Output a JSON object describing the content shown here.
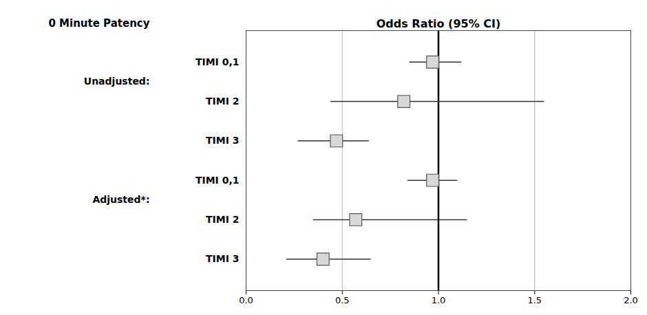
{
  "chart_data": {
    "type": "forest",
    "title": "Odds Ratio (95% CI)",
    "subtitle": "0 Minute Patency",
    "groups": [
      {
        "name": "Unadjusted:",
        "categories": [
          "TIMI 0,1",
          "TIMI 2",
          "TIMI 3"
        ],
        "values": [
          0.97,
          0.82,
          0.47
        ],
        "ci_lo": [
          0.85,
          0.44,
          0.27
        ],
        "ci_hi": [
          1.12,
          1.55,
          0.64
        ]
      },
      {
        "name": "Adjusted*:",
        "categories": [
          "TIMI 0,1",
          "TIMI 2",
          "TIMI 3"
        ],
        "values": [
          0.97,
          0.57,
          0.4
        ],
        "ci_lo": [
          0.84,
          0.35,
          0.21
        ],
        "ci_hi": [
          1.1,
          1.15,
          0.65
        ]
      }
    ],
    "reference_line": 1.0,
    "xlim": [
      0.0,
      2.0
    ],
    "xticks": [
      {
        "value": 0,
        "label": "0.0"
      },
      0.5,
      {
        "value": 1,
        "label": "1.0"
      },
      1.5,
      {
        "value": 2,
        "label": "2.0"
      }
    ],
    "grid": true,
    "tick_labels": "x",
    "color": "#d8d8d8"
  }
}
